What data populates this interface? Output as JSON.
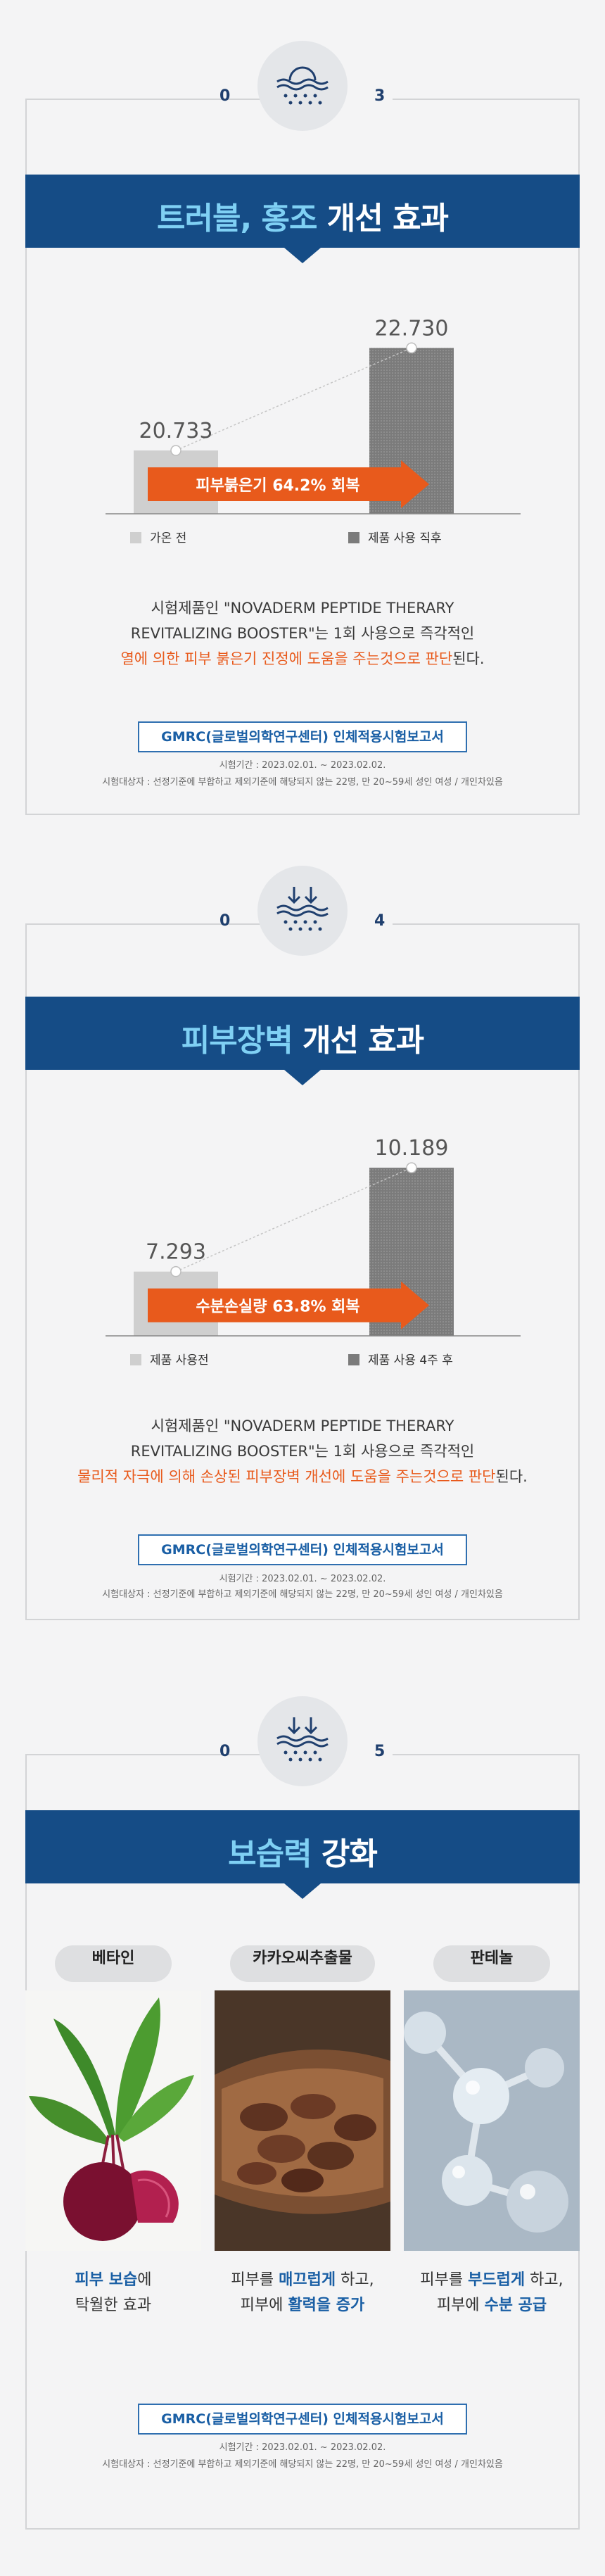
{
  "sections": [
    {
      "num_left": "0",
      "num_right": "3",
      "title_hl": "트러블, 홍조",
      "title_rest": " 개선 효과",
      "chart_data": {
        "type": "bar",
        "categories": [
          "가온 전",
          "제품 사용 직후"
        ],
        "values": [
          20.733,
          22.73
        ],
        "value_labels": [
          "20.733",
          "22.730"
        ],
        "ylim": [
          19.5,
          23.2
        ],
        "arrow_label": "피부붉은기 64.2% 회복"
      },
      "desc_line1": "시험제품인 \"NOVADERM PEPTIDE THERARY",
      "desc_line2": "REVITALIZING BOOSTER\"는 1회 사용으로 즉각적인",
      "desc_orange": "열에 의한 피부 붉은기 진정에 도움을 주는것으로 판단",
      "desc_tail": "된다.",
      "report": "GMRC(글로벌의학연구센터) 인체적용시험보고서",
      "period": "시험기간 : 2023.02.01. ~ 2023.02.02.",
      "subjects": "시험대상자 : 선정기준에 부합하고 제외기준에 해당되지 않는 22명, 만 20~59세 성인 여성 / 개인차있음"
    },
    {
      "num_left": "0",
      "num_right": "4",
      "title_hl": "피부장벽",
      "title_rest": " 개선 효과",
      "chart_data": {
        "type": "bar",
        "categories": [
          "제품 사용전",
          "제품 사용 4주 후"
        ],
        "values": [
          7.293,
          10.189
        ],
        "value_labels": [
          "7.293",
          "10.189"
        ],
        "ylim": [
          5.5,
          10.8
        ],
        "arrow_label": "수분손실량 63.8% 회복"
      },
      "desc_line1": "시험제품인 \"NOVADERM PEPTIDE THERARY",
      "desc_line2": "REVITALIZING BOOSTER\"는 1회 사용으로 즉각적인",
      "desc_orange": "물리적 자극에 의해 손상된 피부장벽 개선에 도움을 주는것으로 판단",
      "desc_tail": "된다.",
      "report": "GMRC(글로벌의학연구센터) 인체적용시험보고서",
      "period": "시험기간 : 2023.02.01. ~ 2023.02.02.",
      "subjects": "시험대상자 : 선정기준에 부합하고 제외기준에 해당되지 않는 22명, 만 20~59세 성인 여성 / 개인차있음"
    }
  ],
  "section5": {
    "num_left": "0",
    "num_right": "5",
    "title_hl": "보습력",
    "title_rest": " 강화",
    "ingredients": [
      {
        "name": "베타인",
        "l1a": "피부 보습",
        "l1b": "에",
        "l2a": "탁월한 효과",
        "l2b": "",
        "l2c": ""
      },
      {
        "name": "카카오씨추출물",
        "l1pre": "피부를 ",
        "l1a": "매끄럽게",
        "l1b": " 하고,",
        "l2pre": "피부에 ",
        "l2a": "활력을 증가",
        "l2b": ""
      },
      {
        "name": "판테놀",
        "l1pre": "피부를 ",
        "l1a": "부드럽게",
        "l1b": " 하고,",
        "l2pre": "피부에 ",
        "l2a": "수분 공급",
        "l2b": ""
      }
    ],
    "report": "GMRC(글로벌의학연구센터) 인체적용시험보고서",
    "period": "시험기간 : 2023.02.01. ~ 2023.02.02.",
    "subjects": "시험대상자 : 선정기준에 부합하고 제외기준에 해당되지 않는 22명, 만 20~59세 성인 여성 / 개인차있음"
  },
  "colors": {
    "navy": "#154c86",
    "highlight": "#7fd0f4",
    "orange": "#e85a1c",
    "bar_before": "#cfcfcf",
    "bar_after": "#7b7b7b"
  }
}
